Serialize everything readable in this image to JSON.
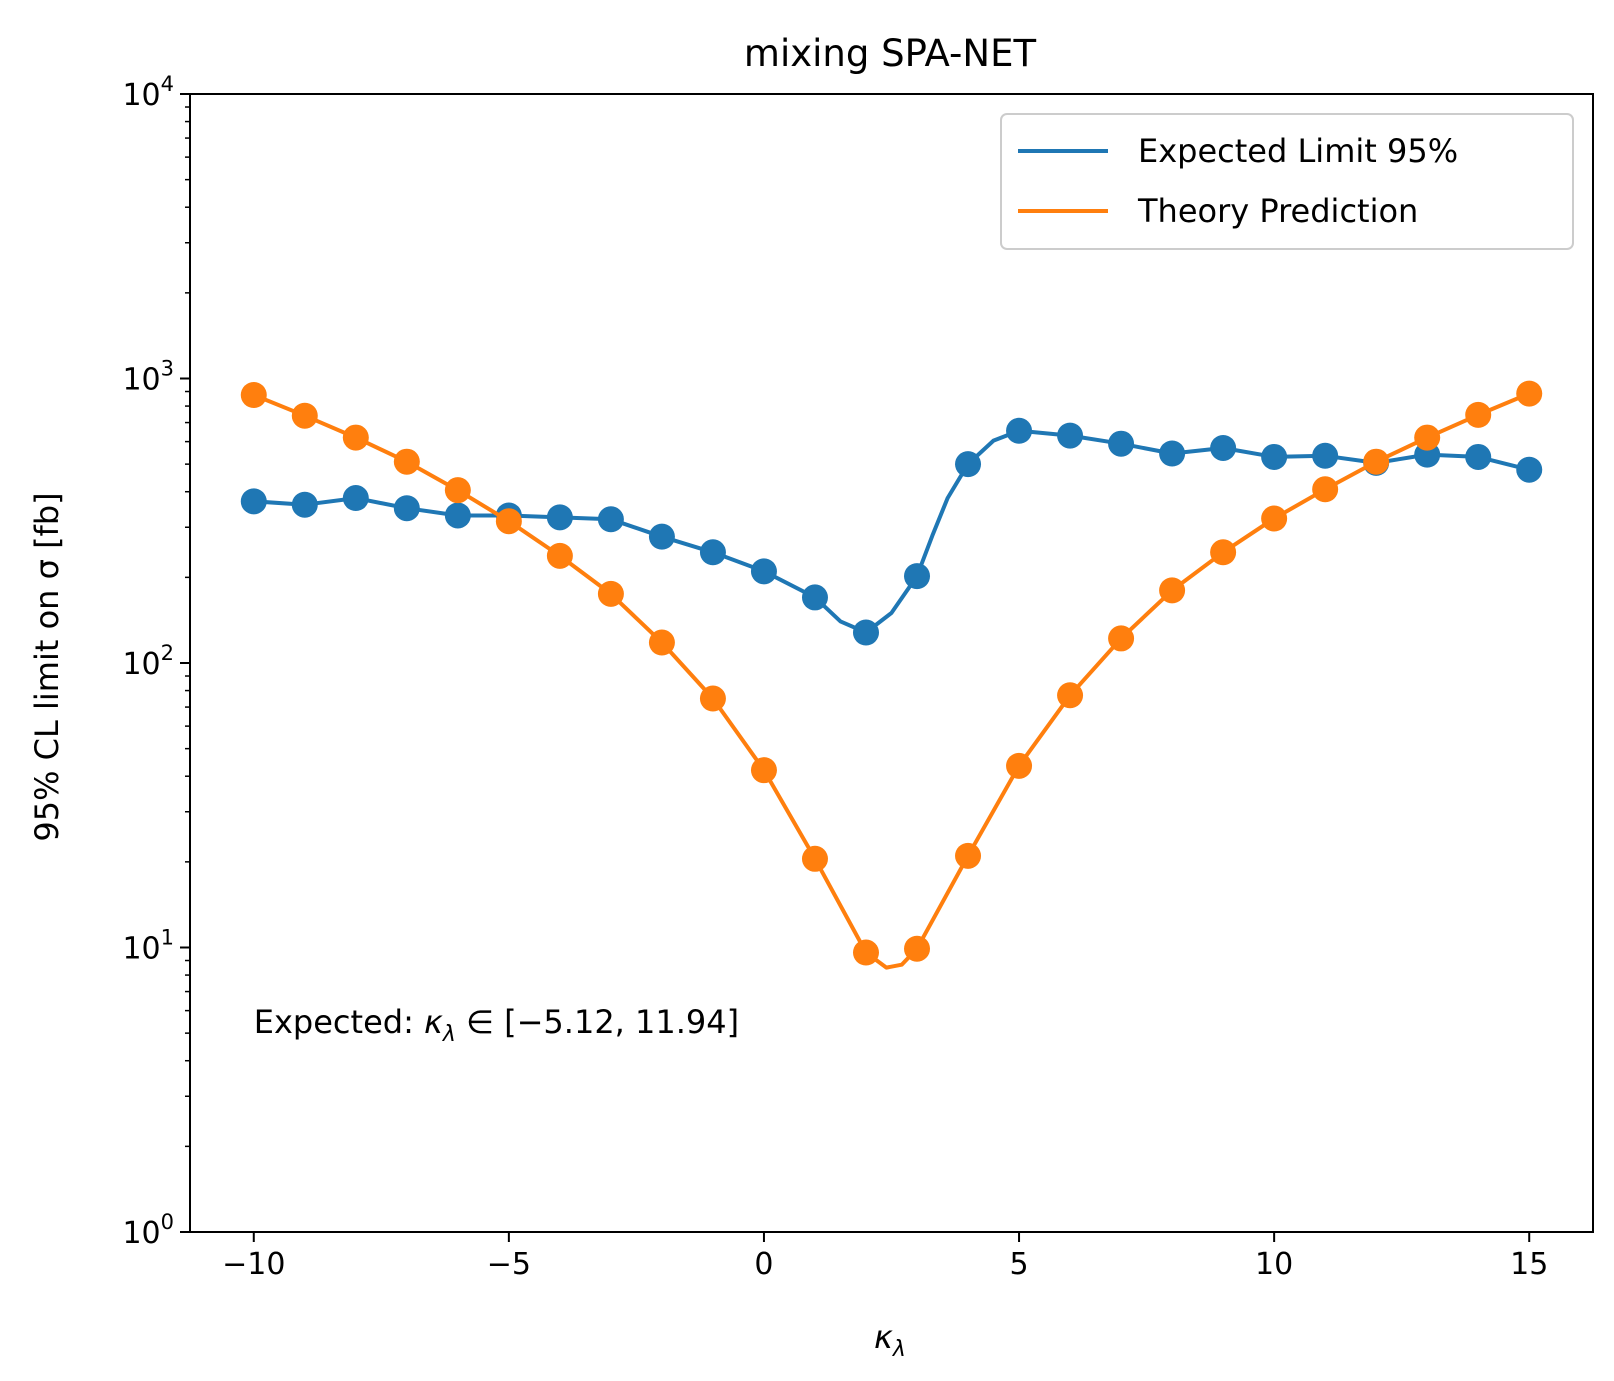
{
  "chart_data": {
    "type": "line",
    "title": "mixing SPA-NET",
    "xlabel": "κ",
    "xlabel_sub": "λ",
    "ylabel": "95% CL limit on σ [fb]",
    "y_scale": "log",
    "xlim": [
      -11.25,
      16.25
    ],
    "ylim": [
      1,
      10000
    ],
    "x_ticks": [
      -10,
      -5,
      0,
      5,
      10,
      15
    ],
    "x_tick_labels": [
      "−10",
      "−5",
      "0",
      "5",
      "10",
      "15"
    ],
    "y_ticks": [
      {
        "value": 1,
        "base": "10",
        "exp": "0"
      },
      {
        "value": 10,
        "base": "10",
        "exp": "1"
      },
      {
        "value": 100,
        "base": "10",
        "exp": "2"
      },
      {
        "value": 1000,
        "base": "10",
        "exp": "3"
      },
      {
        "value": 10000,
        "base": "10",
        "exp": "4"
      }
    ],
    "grid": false,
    "legend_position": "top-right",
    "series": [
      {
        "name": "Expected Limit 95%",
        "color": "#1f77b4",
        "x": [
          -10,
          -9,
          -8,
          -7,
          -6,
          -5,
          -4,
          -3,
          -2,
          -1,
          0,
          1,
          2,
          3,
          4,
          5,
          6,
          7,
          8,
          9,
          10,
          11,
          12,
          13,
          14,
          15
        ],
        "values": [
          370,
          360,
          380,
          350,
          330,
          330,
          325,
          320,
          278,
          245,
          210,
          170,
          128,
          202,
          500,
          655,
          630,
          590,
          545,
          570,
          530,
          535,
          505,
          540,
          530,
          478
        ],
        "curve_x": [
          -10,
          -9,
          -8,
          -7,
          -6,
          -5,
          -4,
          -3,
          -2,
          -1,
          0,
          1,
          1.5,
          2,
          2.5,
          3,
          3.3,
          3.6,
          4,
          4.5,
          5,
          6,
          7,
          8,
          9,
          10,
          11,
          12,
          13,
          14,
          15
        ],
        "curve_values": [
          370,
          360,
          380,
          350,
          330,
          330,
          325,
          320,
          278,
          245,
          210,
          170,
          140,
          128,
          150,
          202,
          280,
          380,
          500,
          605,
          655,
          630,
          590,
          545,
          570,
          530,
          535,
          505,
          540,
          530,
          478
        ]
      },
      {
        "name": "Theory Prediction",
        "color": "#ff7f0e",
        "x": [
          -10,
          -9,
          -8,
          -7,
          -6,
          -5,
          -4,
          -3,
          -2,
          -1,
          0,
          1,
          2,
          3,
          4,
          5,
          6,
          7,
          8,
          9,
          10,
          11,
          12,
          13,
          14,
          15
        ],
        "values": [
          875,
          740,
          620,
          510,
          405,
          315,
          238,
          175,
          118,
          75,
          42,
          20.5,
          9.6,
          9.9,
          21,
          43.5,
          77,
          122,
          180,
          245,
          322,
          408,
          510,
          620,
          745,
          885
        ],
        "curve_x": [
          -10,
          -9,
          -8,
          -7,
          -6,
          -5,
          -4,
          -3,
          -2,
          -1,
          0,
          1,
          2,
          2.4,
          2.7,
          3,
          4,
          5,
          6,
          7,
          8,
          9,
          10,
          11,
          12,
          13,
          14,
          15
        ],
        "curve_values": [
          875,
          740,
          620,
          510,
          405,
          315,
          238,
          175,
          118,
          75,
          42,
          20.5,
          9.6,
          8.5,
          8.7,
          9.9,
          21,
          43.5,
          77,
          122,
          180,
          245,
          322,
          408,
          510,
          620,
          745,
          885
        ]
      }
    ],
    "annotation": {
      "prefix": "Expected: ",
      "symbol": "κ",
      "symbol_sub": "λ",
      "relation": " ∈ ",
      "interval": "[−5.12, 11.94]",
      "anchor_x": -10,
      "anchor_y": 5
    }
  }
}
